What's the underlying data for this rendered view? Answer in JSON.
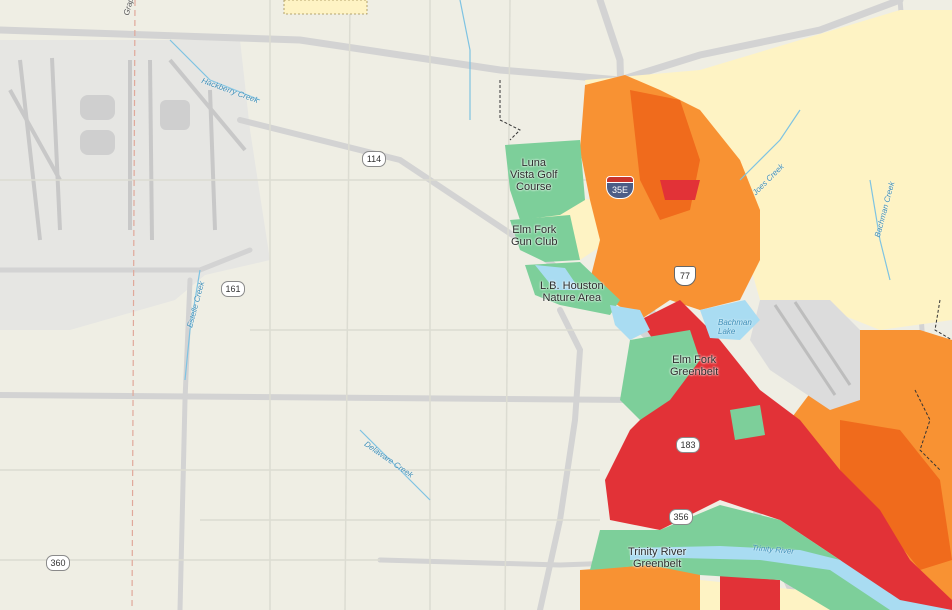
{
  "map": {
    "places": [
      {
        "id": "luna-vista",
        "label": "Luna\nVista Golf\nCourse"
      },
      {
        "id": "elm-fork-gun-club",
        "label": "Elm Fork\nGun Club"
      },
      {
        "id": "lb-houston",
        "label": "L.B. Houston\nNature Area"
      },
      {
        "id": "elm-fork-greenbelt",
        "label": "Elm Fork\nGreenbelt"
      },
      {
        "id": "trinity-river-greenbelt",
        "label": "Trinity River\nGreenbelt"
      }
    ],
    "water_labels": [
      {
        "id": "hackberry-creek",
        "label": "Hackberry Creek"
      },
      {
        "id": "estelle-creek",
        "label": "Estelle Creek"
      },
      {
        "id": "delaware-creek",
        "label": "Delaware Creek"
      },
      {
        "id": "joes-creek",
        "label": "Joes Creek"
      },
      {
        "id": "bachman-creek",
        "label": "Bachman Creek"
      },
      {
        "id": "bachman-lake",
        "label": "Bachman\nLake"
      },
      {
        "id": "trinity-river",
        "label": "Trinity River"
      },
      {
        "id": "grapevine",
        "label": "Grape"
      }
    ],
    "shields": {
      "i35e": "35E",
      "us77": "77",
      "sh114": "114",
      "sh161": "161",
      "sh183": "183",
      "sh356": "356",
      "sh360": "360"
    },
    "colors": {
      "base": "#efeee4",
      "airport": "#e4e4e4",
      "light_yellow": "#fef3c4",
      "orange": "#f89233",
      "dark_orange": "#f06b1c",
      "red": "#e23237",
      "green": "#7dcf9a",
      "water": "#a9dcf2"
    }
  }
}
